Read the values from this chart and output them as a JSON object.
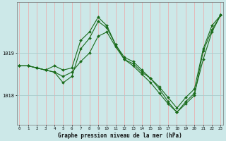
{
  "title": "Graphe pression niveau de la mer (hPa)",
  "bg_color": "#cce8e8",
  "grid_color": "#aacccc",
  "line_color": "#1a6b1a",
  "hours": [
    0,
    1,
    2,
    3,
    4,
    5,
    6,
    7,
    8,
    9,
    10,
    11,
    12,
    13,
    14,
    15,
    16,
    17,
    18,
    19,
    20,
    21,
    22,
    23
  ],
  "series_a": [
    1018.7,
    1018.7,
    1018.65,
    1018.6,
    1018.55,
    1018.45,
    1018.55,
    1018.8,
    1019.0,
    1019.4,
    1019.5,
    1019.15,
    1018.85,
    1018.75,
    1018.55,
    1018.4,
    1018.15,
    1017.85,
    1017.6,
    1017.85,
    1018.05,
    1018.85,
    1019.5,
    1019.9
  ],
  "series_b": [
    1018.7,
    1018.7,
    1018.65,
    1018.6,
    1018.55,
    1018.3,
    1018.45,
    1019.1,
    1019.35,
    1019.75,
    1019.6,
    1019.2,
    1018.85,
    1018.7,
    1018.5,
    1018.3,
    1018.05,
    1017.8,
    1017.6,
    1017.8,
    1018.0,
    1019.05,
    1019.55,
    1019.9
  ],
  "series_c": [
    1018.7,
    1018.7,
    1018.65,
    1018.6,
    1018.7,
    1018.6,
    1018.65,
    1019.3,
    1019.5,
    1019.85,
    1019.65,
    1019.2,
    1018.9,
    1018.8,
    1018.6,
    1018.4,
    1018.2,
    1017.95,
    1017.7,
    1017.95,
    1018.15,
    1019.1,
    1019.65,
    1019.9
  ],
  "yticks": [
    1018,
    1019
  ],
  "ylim": [
    1017.3,
    1020.2
  ],
  "xlim": [
    -0.3,
    23.3
  ],
  "figsize": [
    3.2,
    2.0
  ],
  "dpi": 100
}
